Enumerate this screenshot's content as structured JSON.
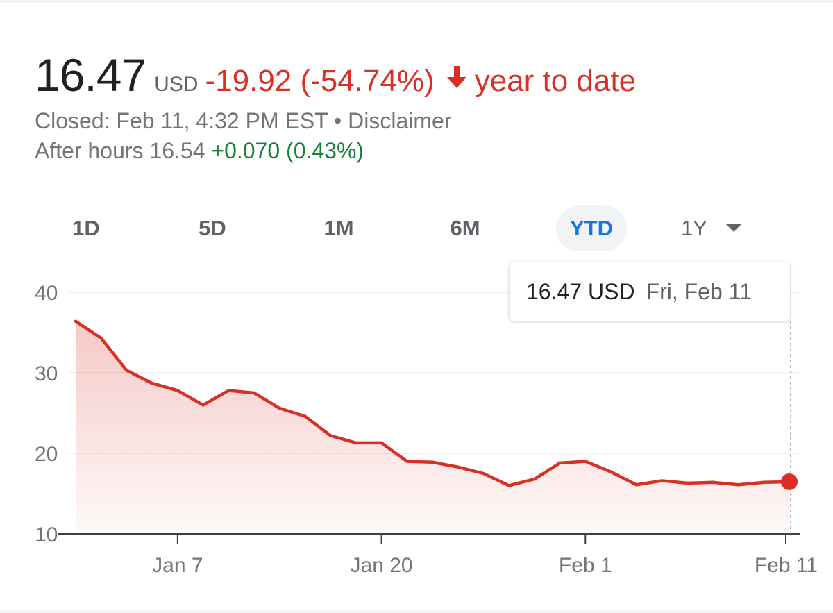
{
  "quote": {
    "price": "16.47",
    "currency": "USD",
    "change": "-19.92 (-54.74%)",
    "arrow_icon": "arrow-down-icon",
    "period": "year to date",
    "negative_color": "#d93025",
    "positive_color": "#188038"
  },
  "status": {
    "closed": "Closed: Feb 11, 4:32 PM EST",
    "separator": " • ",
    "disclaimer": "Disclaimer",
    "after_hours_label": "After hours 16.54",
    "after_hours_change": "+0.070 (0.43%)"
  },
  "ranges": {
    "items": [
      "1D",
      "5D",
      "1M",
      "6M",
      "YTD",
      "1Y"
    ],
    "selected": "YTD",
    "dropdown_icon": "chevron-down-icon"
  },
  "tooltip": {
    "value": "16.47 USD",
    "date": "Fri, Feb 11"
  },
  "chart_data": {
    "type": "area",
    "title": "",
    "xlabel": "",
    "ylabel": "",
    "ylim": [
      10,
      40
    ],
    "yticks": [
      10,
      20,
      30,
      40
    ],
    "y_tick_labels": [
      "10",
      "20",
      "30",
      "40"
    ],
    "x_tick_labels": [
      "Jan 7",
      "Jan 20",
      "Feb 1",
      "Feb 11"
    ],
    "grid": true,
    "line_color": "#d93025",
    "x": [
      "Jan 3",
      "Jan 4",
      "Jan 5",
      "Jan 6",
      "Jan 7",
      "Jan 10",
      "Jan 11",
      "Jan 12",
      "Jan 13",
      "Jan 14",
      "Jan 18",
      "Jan 19",
      "Jan 20",
      "Jan 21",
      "Jan 24",
      "Jan 25",
      "Jan 26",
      "Jan 27",
      "Jan 28",
      "Jan 31",
      "Feb 1",
      "Feb 2",
      "Feb 3",
      "Feb 4",
      "Feb 7",
      "Feb 8",
      "Feb 9",
      "Feb 10",
      "Feb 11"
    ],
    "series": [
      {
        "values": [
          36.4,
          34.3,
          30.3,
          28.7,
          27.8,
          26.0,
          27.8,
          27.5,
          25.6,
          24.6,
          22.2,
          21.3,
          21.3,
          19.0,
          18.9,
          18.3,
          17.5,
          16.0,
          16.8,
          18.8,
          19.0,
          17.7,
          16.1,
          16.6,
          16.3,
          16.4,
          16.1,
          16.4,
          16.47
        ]
      }
    ],
    "last_point_marker": true
  }
}
